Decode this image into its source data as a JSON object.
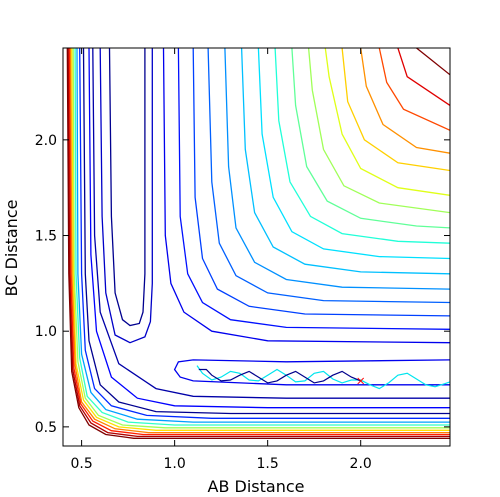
{
  "chart_data": {
    "type": "contour",
    "title": "",
    "xlabel": "AB Distance",
    "ylabel": "BC Distance",
    "xlim": [
      0.4,
      2.48
    ],
    "ylim": [
      0.4,
      2.48
    ],
    "x_ticks": [
      0.5,
      1.0,
      1.5,
      2.0
    ],
    "x_tick_labels": [
      "0.5",
      "1.0",
      "1.5",
      "2.0"
    ],
    "y_ticks": [
      0.5,
      1.0,
      1.5,
      2.0
    ],
    "y_tick_labels": [
      "0.5",
      "1.0",
      "1.5",
      "2.0"
    ],
    "grid": false,
    "legend": "none",
    "colormap": "jet",
    "contours": [
      {
        "color": "#00008f",
        "points": [
          [
            0.84,
            2.48
          ],
          [
            0.84,
            1.3
          ],
          [
            0.83,
            1.1
          ],
          [
            0.81,
            1.04
          ],
          [
            0.76,
            1.03
          ],
          [
            0.72,
            1.06
          ],
          [
            0.68,
            1.2
          ],
          [
            0.66,
            1.6
          ],
          [
            0.65,
            2.48
          ]
        ]
      },
      {
        "color": "#0000c8",
        "points": [
          [
            0.88,
            2.48
          ],
          [
            0.88,
            1.25
          ],
          [
            0.87,
            1.05
          ],
          [
            0.84,
            0.97
          ],
          [
            0.76,
            0.94
          ],
          [
            0.68,
            0.98
          ],
          [
            0.63,
            1.2
          ],
          [
            0.61,
            1.6
          ],
          [
            0.6,
            2.48
          ]
        ]
      },
      {
        "color": "#0000ee",
        "points": [
          [
            2.48,
            0.85
          ],
          [
            1.6,
            0.84
          ],
          [
            1.1,
            0.85
          ],
          [
            1.02,
            0.84
          ],
          [
            1.0,
            0.8
          ],
          [
            1.03,
            0.76
          ],
          [
            1.1,
            0.74
          ],
          [
            1.6,
            0.72
          ],
          [
            2.48,
            0.72
          ]
        ]
      },
      {
        "color": "#0000ee",
        "points": [
          [
            0.94,
            2.48
          ],
          [
            0.95,
            1.5
          ],
          [
            0.98,
            1.25
          ],
          [
            1.05,
            1.1
          ],
          [
            1.2,
            1.0
          ],
          [
            1.5,
            0.95
          ],
          [
            2.48,
            0.94
          ]
        ]
      },
      {
        "color": "#0000a8",
        "points": [
          [
            2.48,
            0.65
          ],
          [
            1.6,
            0.65
          ],
          [
            1.1,
            0.66
          ],
          [
            0.9,
            0.7
          ],
          [
            0.7,
            0.83
          ],
          [
            0.6,
            1.1
          ],
          [
            0.57,
            1.5
          ],
          [
            0.56,
            2.48
          ]
        ]
      },
      {
        "color": "#0010ff",
        "points": [
          [
            1.02,
            2.48
          ],
          [
            1.03,
            1.6
          ],
          [
            1.07,
            1.3
          ],
          [
            1.15,
            1.15
          ],
          [
            1.3,
            1.06
          ],
          [
            1.6,
            1.02
          ],
          [
            2.48,
            1.01
          ]
        ]
      },
      {
        "color": "#0000ff",
        "points": [
          [
            2.48,
            0.6
          ],
          [
            1.5,
            0.6
          ],
          [
            1.0,
            0.61
          ],
          [
            0.8,
            0.65
          ],
          [
            0.66,
            0.76
          ],
          [
            0.58,
            1.0
          ],
          [
            0.55,
            1.4
          ],
          [
            0.54,
            2.48
          ]
        ]
      },
      {
        "color": "#0040ff",
        "points": [
          [
            1.1,
            2.48
          ],
          [
            1.11,
            1.7
          ],
          [
            1.15,
            1.38
          ],
          [
            1.23,
            1.22
          ],
          [
            1.4,
            1.13
          ],
          [
            1.7,
            1.09
          ],
          [
            2.48,
            1.08
          ]
        ]
      },
      {
        "color": "#0060ff",
        "points": [
          [
            1.18,
            2.48
          ],
          [
            1.2,
            1.78
          ],
          [
            1.24,
            1.46
          ],
          [
            1.33,
            1.29
          ],
          [
            1.5,
            1.2
          ],
          [
            1.8,
            1.16
          ],
          [
            2.48,
            1.15
          ]
        ]
      },
      {
        "color": "#0090ff",
        "points": [
          [
            1.27,
            2.48
          ],
          [
            1.29,
            1.86
          ],
          [
            1.33,
            1.54
          ],
          [
            1.43,
            1.36
          ],
          [
            1.6,
            1.27
          ],
          [
            1.9,
            1.23
          ],
          [
            2.48,
            1.22
          ]
        ]
      },
      {
        "color": "#00c0ff",
        "points": [
          [
            1.36,
            2.48
          ],
          [
            1.38,
            1.95
          ],
          [
            1.43,
            1.62
          ],
          [
            1.53,
            1.44
          ],
          [
            1.7,
            1.35
          ],
          [
            2.0,
            1.31
          ],
          [
            2.48,
            1.3
          ]
        ]
      },
      {
        "color": "#00e0ff",
        "points": [
          [
            1.45,
            2.48
          ],
          [
            1.47,
            2.03
          ],
          [
            1.53,
            1.7
          ],
          [
            1.63,
            1.52
          ],
          [
            1.8,
            1.43
          ],
          [
            2.1,
            1.39
          ],
          [
            2.48,
            1.38
          ]
        ]
      },
      {
        "color": "#20ffd8",
        "points": [
          [
            1.54,
            2.48
          ],
          [
            1.56,
            2.1
          ],
          [
            1.62,
            1.78
          ],
          [
            1.73,
            1.6
          ],
          [
            1.9,
            1.51
          ],
          [
            2.2,
            1.47
          ],
          [
            2.48,
            1.46
          ]
        ]
      },
      {
        "color": "#60ff98",
        "points": [
          [
            1.63,
            2.48
          ],
          [
            1.65,
            2.18
          ],
          [
            1.71,
            1.86
          ],
          [
            1.82,
            1.68
          ],
          [
            2.0,
            1.59
          ],
          [
            2.3,
            1.55
          ],
          [
            2.48,
            1.54
          ]
        ]
      },
      {
        "color": "#a0ff58",
        "points": [
          [
            1.72,
            2.48
          ],
          [
            1.74,
            2.26
          ],
          [
            1.8,
            1.95
          ],
          [
            1.91,
            1.76
          ],
          [
            2.1,
            1.67
          ],
          [
            2.48,
            1.62
          ]
        ]
      },
      {
        "color": "#e0ff18",
        "points": [
          [
            1.81,
            2.48
          ],
          [
            1.83,
            2.33
          ],
          [
            1.9,
            2.03
          ],
          [
            2.0,
            1.85
          ],
          [
            2.2,
            1.75
          ],
          [
            2.48,
            1.71
          ]
        ]
      },
      {
        "color": "#ffd000",
        "points": [
          [
            1.9,
            2.48
          ],
          [
            1.93,
            2.2
          ],
          [
            2.02,
            2.0
          ],
          [
            2.2,
            1.88
          ],
          [
            2.48,
            1.84
          ]
        ]
      },
      {
        "color": "#ff9000",
        "points": [
          [
            2.0,
            2.48
          ],
          [
            2.03,
            2.28
          ],
          [
            2.12,
            2.08
          ],
          [
            2.3,
            1.96
          ],
          [
            2.48,
            1.93
          ]
        ]
      },
      {
        "color": "#ff4800",
        "points": [
          [
            2.1,
            2.48
          ],
          [
            2.14,
            2.3
          ],
          [
            2.23,
            2.16
          ],
          [
            2.48,
            2.05
          ]
        ]
      },
      {
        "color": "#e00000",
        "points": [
          [
            2.2,
            2.48
          ],
          [
            2.25,
            2.33
          ],
          [
            2.48,
            2.18
          ]
        ]
      },
      {
        "color": "#800000",
        "points": [
          [
            2.3,
            2.48
          ],
          [
            2.48,
            2.34
          ]
        ]
      },
      {
        "color": "#000090",
        "points": [
          [
            2.48,
            0.57
          ],
          [
            1.3,
            0.57
          ],
          [
            0.9,
            0.58
          ],
          [
            0.7,
            0.63
          ],
          [
            0.6,
            0.72
          ],
          [
            0.54,
            0.95
          ],
          [
            0.52,
            1.3
          ],
          [
            0.51,
            2.48
          ]
        ]
      },
      {
        "color": "#0028ff",
        "points": [
          [
            2.48,
            0.545
          ],
          [
            1.2,
            0.545
          ],
          [
            0.85,
            0.56
          ],
          [
            0.66,
            0.61
          ],
          [
            0.57,
            0.7
          ],
          [
            0.52,
            0.9
          ],
          [
            0.5,
            1.3
          ],
          [
            0.49,
            2.48
          ]
        ]
      },
      {
        "color": "#00a0ff",
        "points": [
          [
            2.48,
            0.525
          ],
          [
            1.1,
            0.525
          ],
          [
            0.8,
            0.54
          ],
          [
            0.63,
            0.59
          ],
          [
            0.55,
            0.68
          ],
          [
            0.5,
            0.88
          ],
          [
            0.48,
            1.3
          ],
          [
            0.475,
            2.48
          ]
        ]
      },
      {
        "color": "#30ffc8",
        "points": [
          [
            2.48,
            0.51
          ],
          [
            1.0,
            0.51
          ],
          [
            0.75,
            0.525
          ],
          [
            0.61,
            0.575
          ],
          [
            0.53,
            0.66
          ],
          [
            0.49,
            0.86
          ],
          [
            0.47,
            1.3
          ],
          [
            0.465,
            2.48
          ]
        ]
      },
      {
        "color": "#a0ff58",
        "points": [
          [
            2.48,
            0.495
          ],
          [
            0.95,
            0.495
          ],
          [
            0.72,
            0.51
          ],
          [
            0.59,
            0.56
          ],
          [
            0.52,
            0.65
          ],
          [
            0.48,
            0.84
          ],
          [
            0.46,
            1.3
          ],
          [
            0.455,
            2.48
          ]
        ]
      },
      {
        "color": "#ffe000",
        "points": [
          [
            2.48,
            0.482
          ],
          [
            0.9,
            0.482
          ],
          [
            0.7,
            0.5
          ],
          [
            0.58,
            0.55
          ],
          [
            0.51,
            0.64
          ],
          [
            0.47,
            0.83
          ],
          [
            0.455,
            1.3
          ],
          [
            0.447,
            2.48
          ]
        ]
      },
      {
        "color": "#ff8000",
        "points": [
          [
            2.48,
            0.47
          ],
          [
            0.86,
            0.47
          ],
          [
            0.68,
            0.49
          ],
          [
            0.57,
            0.54
          ],
          [
            0.5,
            0.63
          ],
          [
            0.465,
            0.82
          ],
          [
            0.448,
            1.3
          ],
          [
            0.44,
            2.48
          ]
        ]
      },
      {
        "color": "#ff2000",
        "points": [
          [
            2.48,
            0.46
          ],
          [
            0.83,
            0.46
          ],
          [
            0.66,
            0.48
          ],
          [
            0.56,
            0.53
          ],
          [
            0.495,
            0.62
          ],
          [
            0.458,
            0.81
          ],
          [
            0.442,
            1.3
          ],
          [
            0.434,
            2.48
          ]
        ]
      },
      {
        "color": "#b00000",
        "points": [
          [
            2.48,
            0.45
          ],
          [
            0.8,
            0.45
          ],
          [
            0.64,
            0.47
          ],
          [
            0.55,
            0.52
          ],
          [
            0.49,
            0.61
          ],
          [
            0.452,
            0.8
          ],
          [
            0.436,
            1.3
          ],
          [
            0.428,
            2.48
          ]
        ]
      },
      {
        "color": "#800000",
        "points": [
          [
            2.48,
            0.44
          ],
          [
            0.78,
            0.44
          ],
          [
            0.63,
            0.46
          ],
          [
            0.54,
            0.51
          ],
          [
            0.485,
            0.6
          ],
          [
            0.447,
            0.79
          ],
          [
            0.431,
            1.3
          ],
          [
            0.423,
            2.48
          ]
        ]
      }
    ],
    "trajectories": [
      {
        "color": "#00e5ee",
        "description": "trajectory",
        "points": [
          [
            1.12,
            0.82
          ],
          [
            1.15,
            0.78
          ],
          [
            1.2,
            0.745
          ],
          [
            1.25,
            0.76
          ],
          [
            1.3,
            0.79
          ],
          [
            1.35,
            0.78
          ],
          [
            1.4,
            0.745
          ],
          [
            1.45,
            0.74
          ],
          [
            1.5,
            0.77
          ],
          [
            1.55,
            0.8
          ],
          [
            1.6,
            0.77
          ],
          [
            1.65,
            0.735
          ],
          [
            1.7,
            0.74
          ],
          [
            1.75,
            0.78
          ],
          [
            1.8,
            0.79
          ],
          [
            1.85,
            0.75
          ],
          [
            1.9,
            0.73
          ],
          [
            1.95,
            0.745
          ],
          [
            2.0,
            0.745
          ],
          [
            2.05,
            0.72
          ],
          [
            2.1,
            0.7
          ],
          [
            2.15,
            0.73
          ],
          [
            2.2,
            0.77
          ],
          [
            2.25,
            0.78
          ],
          [
            2.3,
            0.75
          ],
          [
            2.35,
            0.72
          ],
          [
            2.4,
            0.71
          ],
          [
            2.45,
            0.725
          ],
          [
            2.48,
            0.735
          ]
        ]
      },
      {
        "color": "#00008b",
        "description": "trajectory",
        "points": [
          [
            2.0,
            0.74
          ],
          [
            1.95,
            0.76
          ],
          [
            1.9,
            0.79
          ],
          [
            1.85,
            0.77
          ],
          [
            1.8,
            0.74
          ],
          [
            1.75,
            0.73
          ],
          [
            1.7,
            0.76
          ],
          [
            1.65,
            0.79
          ],
          [
            1.6,
            0.77
          ],
          [
            1.55,
            0.74
          ],
          [
            1.5,
            0.73
          ],
          [
            1.45,
            0.76
          ],
          [
            1.4,
            0.79
          ],
          [
            1.35,
            0.77
          ],
          [
            1.3,
            0.745
          ],
          [
            1.25,
            0.74
          ],
          [
            1.2,
            0.77
          ],
          [
            1.17,
            0.8
          ],
          [
            1.13,
            0.8
          ]
        ]
      }
    ],
    "marker": {
      "symbol": "x",
      "color": "#ff0000",
      "x": 2.0,
      "y": 0.74
    }
  }
}
